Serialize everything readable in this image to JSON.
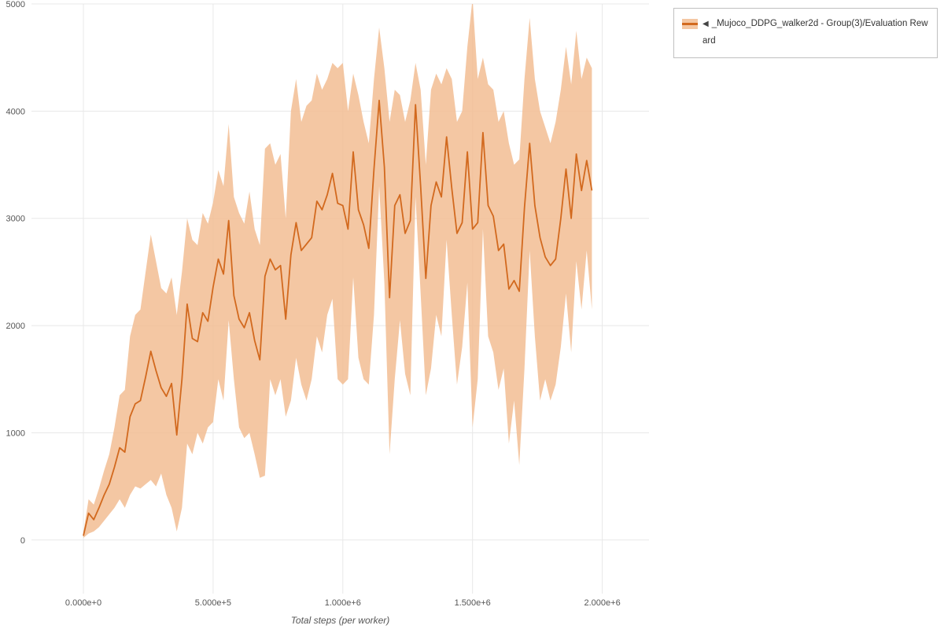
{
  "legend": {
    "collapse_icon": "◀",
    "label": "_Mujoco_DDPG_walker2d - Group(3)/Evaluation Reward"
  },
  "chart_data": {
    "type": "line",
    "title": "",
    "xlabel": "Total steps (per worker)",
    "ylabel": "",
    "legend_position": "top-right outside",
    "grid": true,
    "xlim": [
      -200000,
      2180000
    ],
    "ylim": [
      -500,
      5000
    ],
    "xticks": {
      "values": [
        0,
        500000,
        1000000,
        1500000,
        2000000
      ],
      "labels": [
        "0.000e+0",
        "5.000e+5",
        "1.000e+6",
        "1.500e+6",
        "2.000e+6"
      ]
    },
    "yticks": {
      "values": [
        0,
        1000,
        2000,
        3000,
        4000,
        5000
      ],
      "labels": [
        "0",
        "1000",
        "2000",
        "3000",
        "4000",
        "5000"
      ]
    },
    "series_name": "_Mujoco_DDPG_walker2d - Group(3)/Evaluation Reward",
    "line_color": "#d2691e",
    "band_color": "#f2bd93",
    "band_opacity": 0.85,
    "grid_color": "#e8e8e8",
    "tick_color": "#555555",
    "x_start": 0,
    "x_step": 20000,
    "mean": [
      40,
      250,
      190,
      300,
      420,
      520,
      680,
      860,
      820,
      1150,
      1270,
      1300,
      1520,
      1760,
      1580,
      1420,
      1340,
      1460,
      980,
      1500,
      2200,
      1880,
      1850,
      2120,
      2040,
      2360,
      2620,
      2480,
      2980,
      2280,
      2060,
      1980,
      2120,
      1860,
      1680,
      2460,
      2620,
      2520,
      2560,
      2060,
      2660,
      2960,
      2700,
      2760,
      2820,
      3160,
      3080,
      3220,
      3420,
      3140,
      3120,
      2900,
      3620,
      3080,
      2940,
      2720,
      3460,
      4100,
      3480,
      2260,
      3120,
      3220,
      2860,
      2980,
      4060,
      3300,
      2440,
      3120,
      3340,
      3200,
      3760,
      3280,
      2860,
      2960,
      3620,
      2900,
      2960,
      3800,
      3120,
      3020,
      2700,
      2760,
      2340,
      2420,
      2320,
      3100,
      3700,
      3120,
      2820,
      2640,
      2560,
      2620,
      3000,
      3460,
      3000,
      3600,
      3260,
      3540,
      3260
    ],
    "low": [
      20,
      60,
      80,
      120,
      180,
      240,
      300,
      380,
      300,
      420,
      500,
      480,
      520,
      560,
      500,
      620,
      420,
      300,
      80,
      300,
      900,
      800,
      1000,
      900,
      1050,
      1100,
      1500,
      1300,
      2050,
      1500,
      1050,
      950,
      1000,
      800,
      580,
      600,
      1500,
      1350,
      1500,
      1150,
      1300,
      1700,
      1450,
      1300,
      1500,
      1900,
      1750,
      2100,
      2250,
      1500,
      1450,
      1500,
      2450,
      1700,
      1500,
      1450,
      2100,
      3300,
      2400,
      800,
      1500,
      2050,
      1550,
      1350,
      3200,
      2300,
      1350,
      1600,
      2100,
      1900,
      2800,
      2100,
      1450,
      1800,
      2400,
      1050,
      1500,
      2900,
      1900,
      1750,
      1400,
      1600,
      900,
      1300,
      700,
      1600,
      2700,
      1900,
      1300,
      1500,
      1300,
      1450,
      1800,
      2300,
      1750,
      2600,
      2150,
      2700,
      2150
    ],
    "high": [
      70,
      380,
      330,
      480,
      650,
      800,
      1050,
      1350,
      1400,
      1900,
      2100,
      2150,
      2500,
      2850,
      2600,
      2350,
      2300,
      2450,
      2100,
      2500,
      3000,
      2800,
      2750,
      3050,
      2950,
      3150,
      3450,
      3300,
      3880,
      3200,
      3050,
      2950,
      3250,
      2900,
      2750,
      3650,
      3700,
      3500,
      3600,
      3000,
      4000,
      4300,
      3900,
      4050,
      4100,
      4350,
      4200,
      4300,
      4450,
      4400,
      4450,
      4000,
      4350,
      4150,
      3900,
      3700,
      4300,
      4780,
      4400,
      3900,
      4200,
      4150,
      3900,
      4100,
      4450,
      4200,
      3500,
      4200,
      4350,
      4250,
      4400,
      4300,
      3900,
      4000,
      4600,
      5050,
      4300,
      4500,
      4250,
      4200,
      3900,
      4000,
      3700,
      3500,
      3550,
      4300,
      4870,
      4300,
      4000,
      3850,
      3700,
      3900,
      4200,
      4600,
      4250,
      4750,
      4300,
      4500,
      4400
    ]
  }
}
